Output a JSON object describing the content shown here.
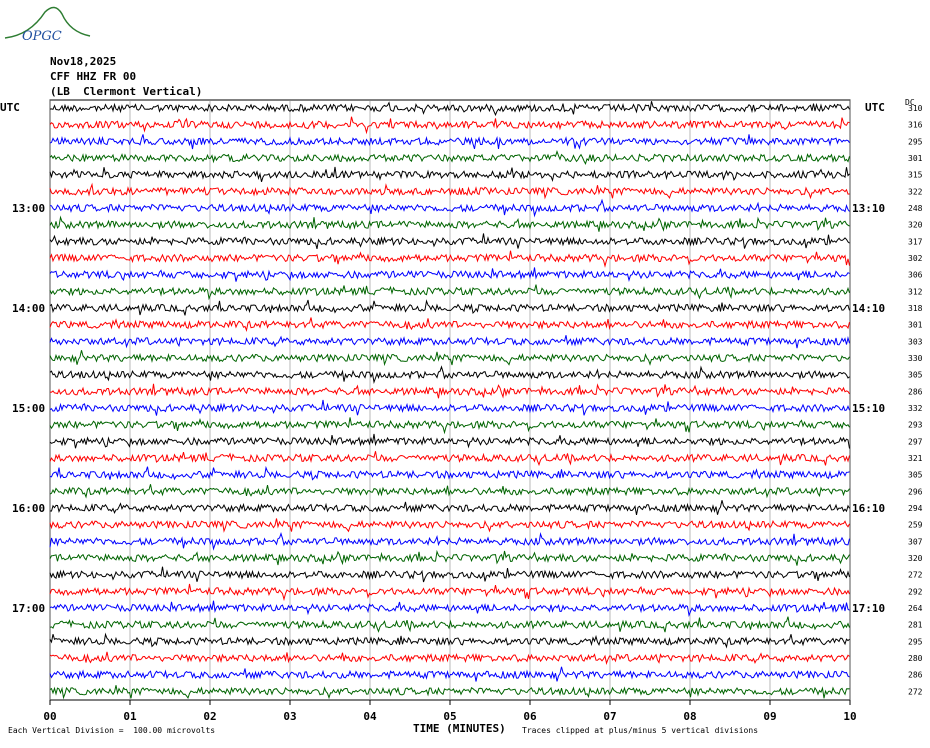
{
  "header": {
    "logo": "OPGC",
    "date": "Nov18,2025",
    "station": "CFF HHZ FR 00",
    "location": "(LB  Clermont Vertical)",
    "left_unit": "UTC",
    "right_unit": "UTC",
    "dc_label": "DC"
  },
  "left_labels": [
    "13:00",
    "14:00",
    "15:00",
    "16:00",
    "17:00"
  ],
  "right_labels": [
    "13:10",
    "14:10",
    "15:10",
    "16:10",
    "17:10"
  ],
  "dc_values": [
    310,
    316,
    295,
    301,
    315,
    322,
    248,
    320,
    317,
    302,
    306,
    312,
    318,
    301,
    303,
    330,
    305,
    286,
    332,
    293,
    297,
    321,
    305,
    296,
    294,
    259,
    307,
    320,
    272,
    292,
    264,
    281,
    295,
    280,
    286,
    272
  ],
  "x_ticks": [
    "00",
    "01",
    "02",
    "03",
    "04",
    "05",
    "06",
    "07",
    "08",
    "09",
    "10"
  ],
  "footer": {
    "scale": "Each Vertical Division =  100.00 microvolts",
    "x_label": "TIME (MINUTES)",
    "clip_note": "Traces clipped at plus/minus 5 vertical divisions"
  }
}
